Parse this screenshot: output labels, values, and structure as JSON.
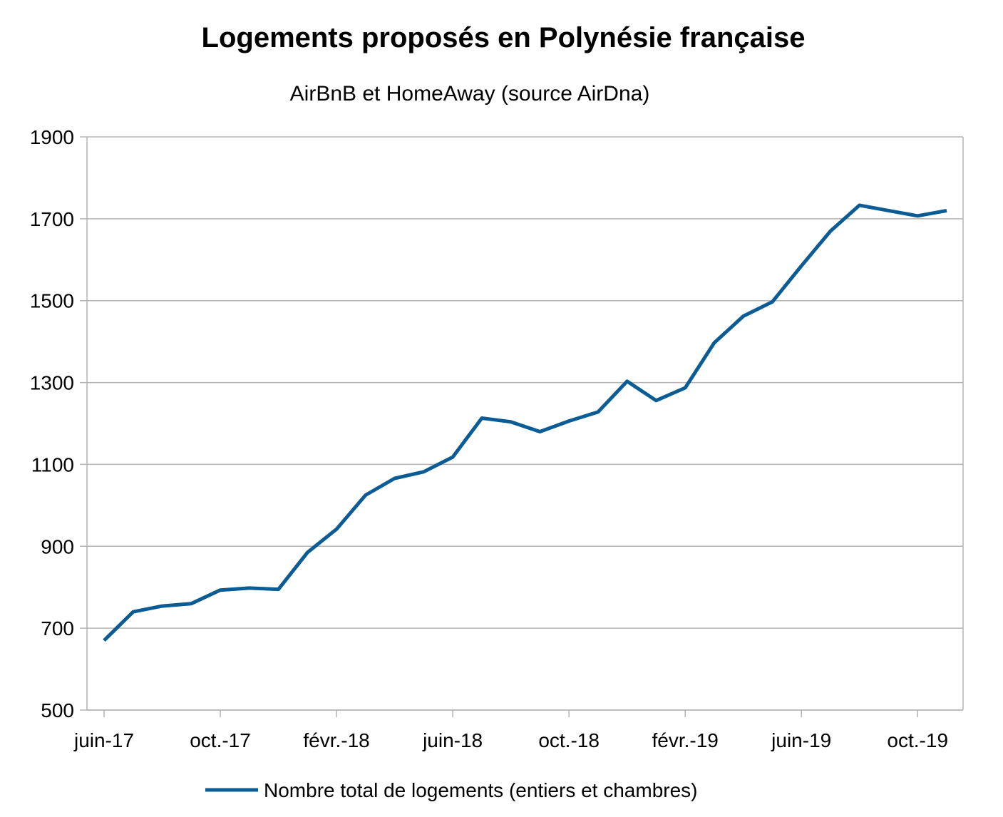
{
  "chart_data": {
    "type": "line",
    "title": "Logements proposés en Polynésie française",
    "subtitle": "AirBnB et HomeAway (source AirDna)",
    "xlabel": "",
    "ylabel": "",
    "ylim": [
      500,
      1900
    ],
    "yticks": [
      500,
      700,
      900,
      1100,
      1300,
      1500,
      1700,
      1900
    ],
    "xticks": [
      {
        "index": 0,
        "label": "juin-17"
      },
      {
        "index": 4,
        "label": "oct.-17"
      },
      {
        "index": 8,
        "label": "févr.-18"
      },
      {
        "index": 12,
        "label": "juin-18"
      },
      {
        "index": 16,
        "label": "oct.-18"
      },
      {
        "index": 20,
        "label": "févr.-19"
      },
      {
        "index": 24,
        "label": "juin-19"
      },
      {
        "index": 28,
        "label": "oct.-19"
      }
    ],
    "grid": true,
    "legend_position": "bottom",
    "color": "#0b5c95",
    "series": [
      {
        "name": "Nombre total de logements (entiers et chambres)",
        "values": [
          670,
          740,
          754,
          760,
          793,
          798,
          795,
          885,
          942,
          1025,
          1066,
          1082,
          1118,
          1213,
          1204,
          1180,
          1206,
          1228,
          1303,
          1256,
          1287,
          1397,
          1462,
          1497,
          1585,
          1670,
          1733,
          1720,
          1707,
          1720
        ]
      }
    ]
  }
}
